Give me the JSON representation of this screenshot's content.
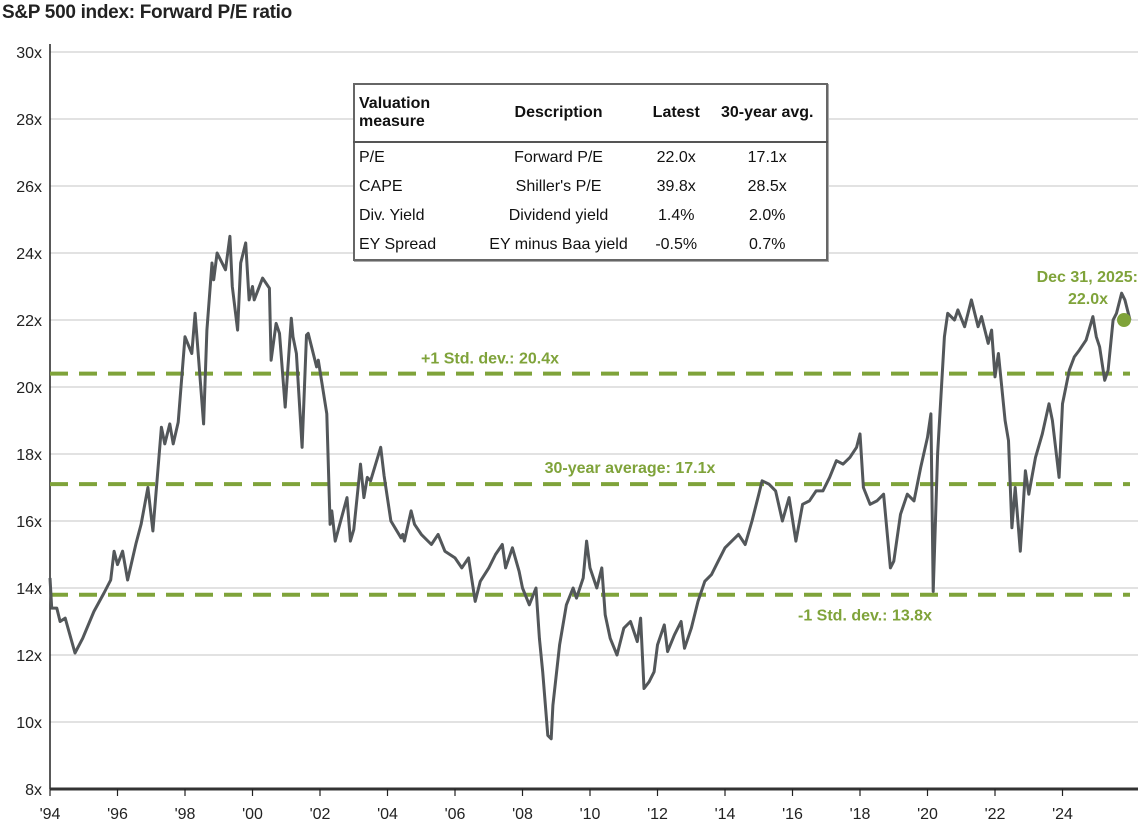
{
  "chart_data": {
    "type": "line",
    "title": "S&P 500 index: Forward P/E ratio",
    "xlabel": "",
    "ylabel": "",
    "xlim": [
      1994,
      2026
    ],
    "ylim": [
      8,
      30
    ],
    "yticks": [
      8,
      10,
      12,
      14,
      16,
      18,
      20,
      22,
      24,
      26,
      28,
      30
    ],
    "ytick_labels": [
      "8x",
      "10x",
      "12x",
      "14x",
      "16x",
      "18x",
      "20x",
      "22x",
      "24x",
      "26x",
      "28x",
      "30x"
    ],
    "xticks": [
      1994,
      1996,
      1998,
      2000,
      2002,
      2004,
      2006,
      2008,
      2010,
      2012,
      2014,
      2016,
      2018,
      2020,
      2022,
      2024
    ],
    "xtick_labels": [
      "'94",
      "'96",
      "'98",
      "'00",
      "'02",
      "'04",
      "'06",
      "'08",
      "'10",
      "'12",
      "'14",
      "'16",
      "'18",
      "'20",
      "'22",
      "'24"
    ],
    "grid": true,
    "colors": {
      "line": "#53575a",
      "reference": "#7fa33a",
      "grid": "#d9d9d9"
    },
    "series": [
      {
        "points": [
          [
            1994.0,
            14.3
          ],
          [
            1994.05,
            13.4
          ],
          [
            1994.2,
            13.4
          ],
          [
            1994.3,
            13.0
          ],
          [
            1994.45,
            13.1
          ],
          [
            1994.74,
            12.06
          ],
          [
            1994.97,
            12.5
          ],
          [
            1995.3,
            13.3
          ],
          [
            1995.6,
            13.85
          ],
          [
            1995.8,
            14.24
          ],
          [
            1995.9,
            15.1
          ],
          [
            1996.0,
            14.7
          ],
          [
            1996.15,
            15.1
          ],
          [
            1996.3,
            14.24
          ],
          [
            1996.55,
            15.34
          ],
          [
            1996.7,
            15.9
          ],
          [
            1996.9,
            17.0
          ],
          [
            1997.05,
            15.7
          ],
          [
            1997.3,
            18.8
          ],
          [
            1997.4,
            18.3
          ],
          [
            1997.55,
            18.9
          ],
          [
            1997.65,
            18.3
          ],
          [
            1997.8,
            18.95
          ],
          [
            1998.0,
            21.5
          ],
          [
            1998.2,
            21.0
          ],
          [
            1998.3,
            22.2
          ],
          [
            1998.55,
            18.9
          ],
          [
            1998.65,
            21.7
          ],
          [
            1998.8,
            23.7
          ],
          [
            1998.85,
            23.2
          ],
          [
            1998.95,
            24.0
          ],
          [
            1999.2,
            23.5
          ],
          [
            1999.33,
            24.5
          ],
          [
            1999.4,
            23.0
          ],
          [
            1999.56,
            21.7
          ],
          [
            1999.65,
            23.7
          ],
          [
            1999.8,
            24.3
          ],
          [
            1999.9,
            22.6
          ],
          [
            2000.0,
            23.0
          ],
          [
            2000.05,
            22.6
          ],
          [
            2000.3,
            23.25
          ],
          [
            2000.5,
            22.95
          ],
          [
            2000.55,
            20.8
          ],
          [
            2000.7,
            21.9
          ],
          [
            2000.8,
            21.6
          ],
          [
            2000.97,
            19.4
          ],
          [
            2001.15,
            22.05
          ],
          [
            2001.2,
            21.5
          ],
          [
            2001.3,
            21.0
          ],
          [
            2001.47,
            18.2
          ],
          [
            2001.6,
            21.55
          ],
          [
            2001.65,
            21.6
          ],
          [
            2001.9,
            20.6
          ],
          [
            2001.95,
            20.8
          ],
          [
            2002.2,
            19.2
          ],
          [
            2002.3,
            15.9
          ],
          [
            2002.35,
            16.3
          ],
          [
            2002.45,
            15.4
          ],
          [
            2002.8,
            16.7
          ],
          [
            2002.9,
            15.4
          ],
          [
            2003.0,
            15.75
          ],
          [
            2003.2,
            17.7
          ],
          [
            2003.3,
            16.7
          ],
          [
            2003.4,
            17.3
          ],
          [
            2003.5,
            17.2
          ],
          [
            2003.8,
            18.2
          ],
          [
            2003.9,
            17.35
          ],
          [
            2004.1,
            16.0
          ],
          [
            2004.4,
            15.5
          ],
          [
            2004.45,
            15.6
          ],
          [
            2004.5,
            15.4
          ],
          [
            2004.7,
            16.3
          ],
          [
            2004.8,
            15.9
          ],
          [
            2005.0,
            15.6
          ],
          [
            2005.3,
            15.3
          ],
          [
            2005.5,
            15.6
          ],
          [
            2005.7,
            15.1
          ],
          [
            2006.0,
            14.9
          ],
          [
            2006.2,
            14.6
          ],
          [
            2006.4,
            14.9
          ],
          [
            2006.6,
            13.6
          ],
          [
            2006.75,
            14.2
          ],
          [
            2007.0,
            14.6
          ],
          [
            2007.2,
            15.0
          ],
          [
            2007.4,
            15.3
          ],
          [
            2007.5,
            14.6
          ],
          [
            2007.7,
            15.2
          ],
          [
            2007.9,
            14.5
          ],
          [
            2008.0,
            14.0
          ],
          [
            2008.2,
            13.5
          ],
          [
            2008.4,
            14.0
          ],
          [
            2008.5,
            12.5
          ],
          [
            2008.6,
            11.5
          ],
          [
            2008.75,
            9.6
          ],
          [
            2008.85,
            9.5
          ],
          [
            2008.9,
            10.5
          ],
          [
            2009.1,
            12.3
          ],
          [
            2009.3,
            13.5
          ],
          [
            2009.5,
            14.0
          ],
          [
            2009.6,
            13.7
          ],
          [
            2009.8,
            14.3
          ],
          [
            2009.9,
            15.4
          ],
          [
            2010.0,
            14.6
          ],
          [
            2010.2,
            14.0
          ],
          [
            2010.35,
            14.6
          ],
          [
            2010.45,
            13.2
          ],
          [
            2010.6,
            12.5
          ],
          [
            2010.8,
            12.0
          ],
          [
            2011.0,
            12.8
          ],
          [
            2011.2,
            13.0
          ],
          [
            2011.4,
            12.4
          ],
          [
            2011.5,
            13.1
          ],
          [
            2011.6,
            11.0
          ],
          [
            2011.75,
            11.2
          ],
          [
            2011.9,
            11.5
          ],
          [
            2012.0,
            12.3
          ],
          [
            2012.2,
            12.9
          ],
          [
            2012.3,
            12.1
          ],
          [
            2012.5,
            12.6
          ],
          [
            2012.7,
            13.0
          ],
          [
            2012.8,
            12.2
          ],
          [
            2013.0,
            12.8
          ],
          [
            2013.2,
            13.6
          ],
          [
            2013.4,
            14.2
          ],
          [
            2013.6,
            14.4
          ],
          [
            2013.8,
            14.8
          ],
          [
            2014.0,
            15.2
          ],
          [
            2014.2,
            15.4
          ],
          [
            2014.4,
            15.6
          ],
          [
            2014.6,
            15.3
          ],
          [
            2014.8,
            16.0
          ],
          [
            2015.0,
            16.8
          ],
          [
            2015.1,
            17.2
          ],
          [
            2015.3,
            17.1
          ],
          [
            2015.5,
            16.9
          ],
          [
            2015.7,
            16.0
          ],
          [
            2015.9,
            16.7
          ],
          [
            2016.1,
            15.4
          ],
          [
            2016.3,
            16.5
          ],
          [
            2016.5,
            16.6
          ],
          [
            2016.7,
            16.9
          ],
          [
            2016.9,
            16.9
          ],
          [
            2017.1,
            17.3
          ],
          [
            2017.3,
            17.8
          ],
          [
            2017.5,
            17.7
          ],
          [
            2017.7,
            17.9
          ],
          [
            2017.9,
            18.2
          ],
          [
            2018.0,
            18.6
          ],
          [
            2018.1,
            17.0
          ],
          [
            2018.3,
            16.5
          ],
          [
            2018.5,
            16.6
          ],
          [
            2018.7,
            16.8
          ],
          [
            2018.9,
            14.6
          ],
          [
            2019.0,
            14.8
          ],
          [
            2019.2,
            16.2
          ],
          [
            2019.4,
            16.8
          ],
          [
            2019.6,
            16.6
          ],
          [
            2019.8,
            17.6
          ],
          [
            2020.0,
            18.5
          ],
          [
            2020.1,
            19.2
          ],
          [
            2020.17,
            13.9
          ],
          [
            2020.3,
            18.0
          ],
          [
            2020.5,
            21.5
          ],
          [
            2020.6,
            22.2
          ],
          [
            2020.8,
            22.0
          ],
          [
            2020.9,
            22.3
          ],
          [
            2021.1,
            21.8
          ],
          [
            2021.3,
            22.6
          ],
          [
            2021.5,
            21.8
          ],
          [
            2021.6,
            22.1
          ],
          [
            2021.8,
            21.3
          ],
          [
            2021.9,
            21.7
          ],
          [
            2022.0,
            20.3
          ],
          [
            2022.1,
            21.0
          ],
          [
            2022.3,
            19.0
          ],
          [
            2022.4,
            18.4
          ],
          [
            2022.5,
            15.8
          ],
          [
            2022.6,
            17.0
          ],
          [
            2022.75,
            15.1
          ],
          [
            2022.9,
            17.5
          ],
          [
            2023.0,
            16.8
          ],
          [
            2023.2,
            17.9
          ],
          [
            2023.4,
            18.6
          ],
          [
            2023.6,
            19.5
          ],
          [
            2023.7,
            19.0
          ],
          [
            2023.9,
            17.3
          ],
          [
            2024.0,
            19.5
          ],
          [
            2024.2,
            20.5
          ],
          [
            2024.35,
            20.9
          ],
          [
            2024.5,
            21.1
          ],
          [
            2024.7,
            21.4
          ],
          [
            2024.9,
            22.1
          ],
          [
            2025.0,
            21.5
          ],
          [
            2025.1,
            21.2
          ],
          [
            2025.25,
            20.2
          ],
          [
            2025.35,
            20.5
          ],
          [
            2025.5,
            22.0
          ],
          [
            2025.6,
            22.2
          ],
          [
            2025.75,
            22.8
          ],
          [
            2025.85,
            22.6
          ],
          [
            2026.0,
            22.0
          ]
        ]
      }
    ],
    "reference_lines": [
      {
        "value": 20.4,
        "label": "+1 Std. dev.: 20.4x"
      },
      {
        "value": 17.1,
        "label": "30-year average: 17.1x"
      },
      {
        "value": 13.8,
        "label": "-1 Std. dev.: 13.8x"
      }
    ],
    "latest_point": {
      "x": 2026.0,
      "y": 22.0,
      "label_line1": "Dec 31, 2025:",
      "label_line2": "22.0x"
    }
  },
  "table": {
    "headers": [
      "Valuation measure",
      "Description",
      "Latest",
      "30-year avg."
    ],
    "rows": [
      [
        "P/E",
        "Forward P/E",
        "22.0x",
        "17.1x"
      ],
      [
        "CAPE",
        "Shiller's P/E",
        "39.8x",
        "28.5x"
      ],
      [
        "Div. Yield",
        "Dividend yield",
        "1.4%",
        "2.0%"
      ],
      [
        "EY Spread",
        "EY minus Baa yield",
        "-0.5%",
        "0.7%"
      ]
    ]
  }
}
